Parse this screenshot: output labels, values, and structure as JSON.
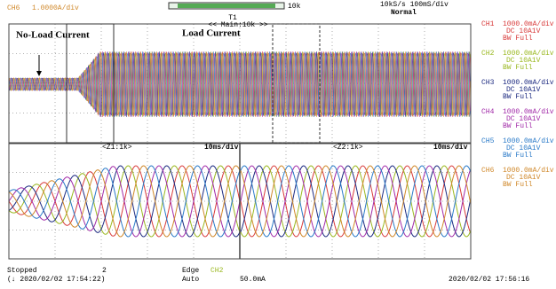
{
  "header": {
    "channel": "CH6",
    "scale": "1.0000A/div",
    "zoom_bar": "10k",
    "sample": "10kS/s 100mS/div",
    "trigger_mode": "Normal",
    "marker": "T1"
  },
  "main_window": {
    "label": "<< Main:10k >>",
    "annotations": [
      "No-Load Current",
      "Load Current"
    ]
  },
  "zoom_windows": [
    {
      "label": "<Z1:1k>",
      "scale": "10ms/div"
    },
    {
      "label": "<Z2:1k>",
      "scale": "10ms/div"
    }
  ],
  "channels": [
    {
      "name": "CH1",
      "color": "#d83a3a",
      "scale": "1000.0mA/div",
      "coupling": "DC 10A1V",
      "bandwidth": "BW Full"
    },
    {
      "name": "CH2",
      "color": "#9ab820",
      "scale": "1000.0mA/div",
      "coupling": "DC 10A1V",
      "bandwidth": "BW Full"
    },
    {
      "name": "CH3",
      "color": "#1c2a80",
      "scale": "1000.0mA/div",
      "coupling": "DC 10A1V",
      "bandwidth": "BW Full"
    },
    {
      "name": "CH4",
      "color": "#a12aa8",
      "scale": "1000.0mA/div",
      "coupling": "DC 10A1V",
      "bandwidth": "BW Full"
    },
    {
      "name": "CH5",
      "color": "#2a7ac8",
      "scale": "1000.0mA/div",
      "coupling": "DC 10A1V",
      "bandwidth": "BW Full"
    },
    {
      "name": "CH6",
      "color": "#d0882a",
      "scale": "1000.0mA/div",
      "coupling": "DC 10A1V",
      "bandwidth": "BW Full"
    }
  ],
  "status": {
    "state": "Stopped",
    "count": "2",
    "trigger_type": "Edge",
    "trigger_source": "CH2",
    "trigger_mode": "Auto",
    "trigger_level": "50.0mA",
    "start_time": "(↓ 2020/02/02 17:54:22)",
    "end_time": "2020/02/02 17:56:16"
  }
}
